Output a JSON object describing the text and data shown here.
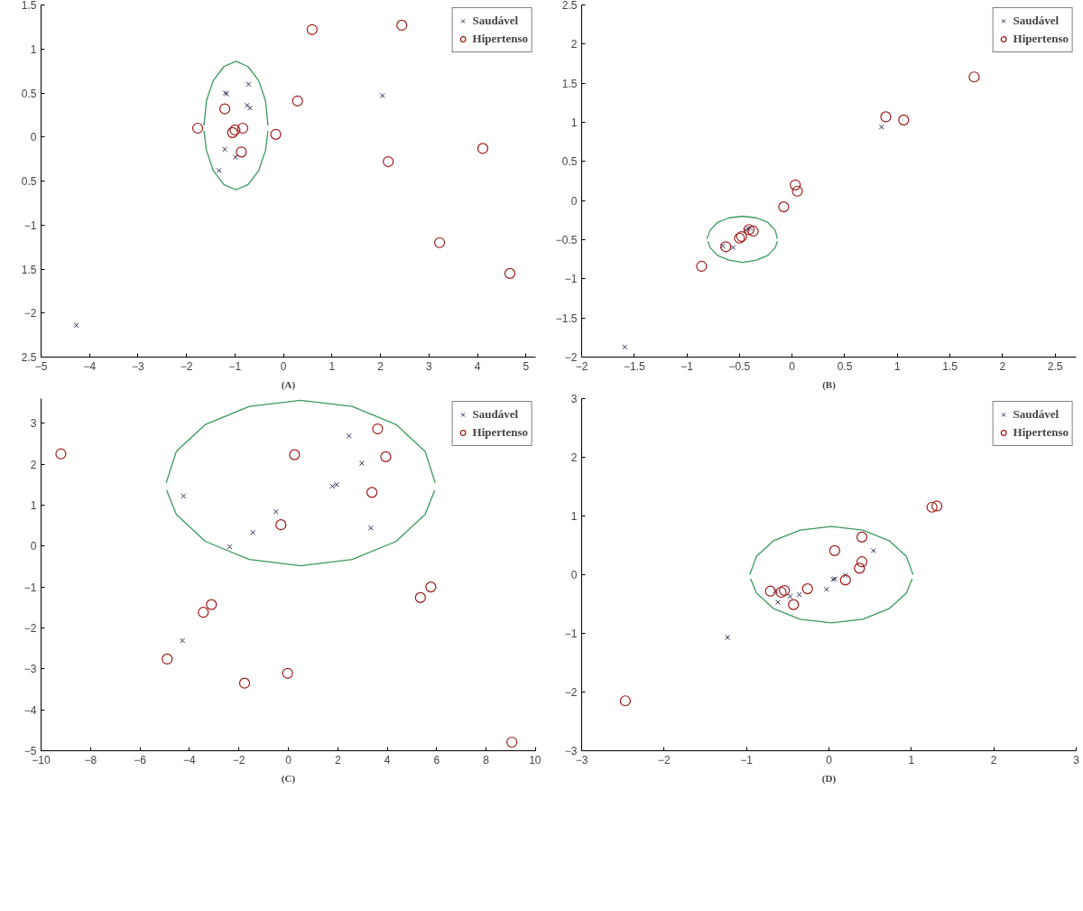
{
  "chart_data": [
    {
      "type": "scatter",
      "title": "(A)",
      "legend": "top right",
      "grid": false,
      "xlim": [
        -5,
        5.2
      ],
      "ylim": [
        -2.5,
        1.5
      ],
      "xticks": [
        -5,
        -4,
        -3,
        -2,
        -1,
        0,
        1,
        2,
        3,
        4,
        5
      ],
      "yticks": [
        1.5,
        1,
        0.5,
        0,
        {
          "value": -0.5,
          "label": "0.5"
        },
        -1,
        {
          "value": -1.5,
          "label": "1.5"
        },
        -2,
        {
          "value": -2.5,
          "label": "2.5"
        }
      ],
      "series": [
        {
          "name": "Saudável",
          "color": "#2b2b55",
          "marker": "cross",
          "x": [
            -4.27,
            -1.2,
            -1.17,
            -0.72,
            -0.75,
            -0.69,
            -1.21,
            -0.99,
            -1.33,
            2.04
          ],
          "values": [
            -2.14,
            0.5,
            0.49,
            0.6,
            0.36,
            0.33,
            -0.14,
            -0.23,
            -0.38,
            0.47
          ]
        },
        {
          "name": "Hipertenso",
          "color": "#a01818",
          "marker": "circle",
          "x": [
            0.59,
            2.44,
            0.29,
            -1.21,
            -1.77,
            -1.05,
            -1.0,
            -0.84,
            -0.16,
            -0.87,
            2.16,
            4.11,
            3.22,
            4.67
          ],
          "values": [
            1.22,
            1.27,
            0.41,
            0.32,
            0.1,
            0.05,
            0.08,
            0.1,
            0.03,
            -0.17,
            -0.28,
            -0.13,
            -1.2,
            -1.55
          ]
        },
        {
          "type": "line",
          "color": "#3a9a5c",
          "marker": "none",
          "line_style": "solid",
          "x": [
            -1.64,
            -1.59,
            -1.45,
            -1.23,
            -0.98,
            -0.73,
            -0.51,
            -0.37,
            -0.32
          ],
          "values": [
            0.13,
            0.41,
            0.64,
            0.8,
            0.86,
            0.8,
            0.64,
            0.41,
            0.13
          ]
        },
        {
          "type": "line",
          "color": "#3a9a5c",
          "marker": "none",
          "line_style": "solid",
          "x": [
            -1.64,
            -1.59,
            -1.45,
            -1.23,
            -0.98,
            -0.73,
            -0.51,
            -0.37,
            -0.32
          ],
          "values": [
            0.07,
            -0.15,
            -0.38,
            -0.54,
            -0.6,
            -0.54,
            -0.38,
            -0.15,
            0.07
          ]
        }
      ]
    },
    {
      "type": "scatter",
      "title": "(B)",
      "legend": "top right",
      "grid": false,
      "xlim": [
        -2,
        2.7
      ],
      "ylim": [
        -2,
        2.5
      ],
      "xticks": [
        -2,
        -1.5,
        -1,
        -0.5,
        0,
        0.5,
        1,
        1.5,
        2,
        2.5
      ],
      "yticks": [
        2.5,
        2,
        1.5,
        1,
        0.5,
        0,
        -0.5,
        -1,
        -1.5,
        -2
      ],
      "series": [
        {
          "name": "Saudável",
          "color": "#2b2b55",
          "marker": "cross",
          "x": [
            -1.59,
            0.85,
            -0.66,
            -0.56,
            -0.44,
            -0.4,
            -0.42
          ],
          "values": [
            -1.87,
            0.94,
            -0.58,
            -0.6,
            -0.38,
            -0.35,
            -0.36
          ]
        },
        {
          "name": "Hipertenso",
          "color": "#a01818",
          "marker": "circle",
          "x": [
            1.73,
            0.89,
            1.06,
            0.03,
            0.05,
            -0.08,
            -0.86,
            -0.63,
            -0.5,
            -0.48,
            -0.37,
            -0.41
          ],
          "values": [
            1.58,
            1.07,
            1.03,
            0.2,
            0.12,
            -0.08,
            -0.84,
            -0.59,
            -0.48,
            -0.46,
            -0.39,
            -0.37
          ]
        },
        {
          "type": "line",
          "color": "#3a9a5c",
          "marker": "none",
          "line_style": "solid",
          "x": [
            -0.81,
            -0.78,
            -0.71,
            -0.6,
            -0.47,
            -0.34,
            -0.23,
            -0.16,
            -0.14
          ],
          "values": [
            -0.49,
            -0.38,
            -0.28,
            -0.22,
            -0.2,
            -0.22,
            -0.28,
            -0.38,
            -0.49
          ]
        },
        {
          "type": "line",
          "color": "#3a9a5c",
          "marker": "none",
          "line_style": "solid",
          "x": [
            -0.8,
            -0.78,
            -0.71,
            -0.6,
            -0.47,
            -0.34,
            -0.23,
            -0.16,
            -0.14
          ],
          "values": [
            -0.52,
            -0.6,
            -0.7,
            -0.76,
            -0.79,
            -0.76,
            -0.7,
            -0.6,
            -0.52
          ]
        }
      ]
    },
    {
      "type": "scatter",
      "title": "(C)",
      "legend": "top right",
      "grid": false,
      "xlim": [
        -10,
        10
      ],
      "ylim": [
        -5,
        3.6
      ],
      "xticks": [
        -10,
        -8,
        -6,
        -4,
        -2,
        0,
        2,
        4,
        6,
        8,
        10
      ],
      "yticks": [
        3,
        2,
        1,
        0,
        -1,
        -2,
        -3,
        -4,
        -5
      ],
      "series": [
        {
          "name": "Saudável",
          "color": "#2b2b55",
          "marker": "cross",
          "x": [
            -4.24,
            -4.28,
            -2.37,
            -1.43,
            -0.5,
            1.79,
            1.95,
            2.45,
            2.97,
            3.33
          ],
          "values": [
            1.22,
            -2.31,
            -0.02,
            0.33,
            0.84,
            1.46,
            1.5,
            2.69,
            2.02,
            0.44
          ]
        },
        {
          "name": "Hipertenso",
          "color": "#a01818",
          "marker": "circle",
          "x": [
            -9.2,
            0.25,
            -0.3,
            3.61,
            3.94,
            3.38,
            -3.11,
            -3.44,
            -4.9,
            -1.77,
            -0.03,
            5.34,
            5.76,
            9.04
          ],
          "values": [
            2.25,
            2.23,
            0.52,
            2.86,
            2.18,
            1.31,
            -1.43,
            -1.62,
            -2.76,
            -3.35,
            -3.11,
            -1.26,
            -1.0,
            -4.79
          ]
        },
        {
          "type": "line",
          "color": "#3a9a5c",
          "marker": "none",
          "line_style": "solid",
          "x": [
            -4.94,
            -4.53,
            -3.35,
            -1.58,
            0.5,
            2.58,
            4.35,
            5.53,
            5.94
          ],
          "values": [
            1.54,
            2.31,
            2.97,
            3.41,
            3.56,
            3.41,
            2.97,
            2.31,
            1.54
          ]
        },
        {
          "type": "line",
          "color": "#3a9a5c",
          "marker": "none",
          "line_style": "solid",
          "x": [
            -4.92,
            -4.53,
            -3.35,
            -1.58,
            0.5,
            2.58,
            4.35,
            5.53,
            5.92
          ],
          "values": [
            1.36,
            0.77,
            0.11,
            -0.33,
            -0.48,
            -0.33,
            0.11,
            0.77,
            1.36
          ]
        }
      ]
    },
    {
      "type": "scatter",
      "title": "(D)",
      "legend": "top right",
      "grid": false,
      "xlim": [
        -3,
        3
      ],
      "ylim": [
        -3,
        3
      ],
      "xticks": [
        -3,
        -2,
        -1,
        0,
        1,
        2,
        3
      ],
      "yticks": [
        3,
        2,
        1,
        0,
        -1,
        -2,
        -3
      ],
      "series": [
        {
          "name": "Saudável",
          "color": "#2b2b55",
          "marker": "cross",
          "x": [
            -1.23,
            -0.65,
            -0.62,
            -0.47,
            -0.36,
            -0.03,
            0.05,
            0.07,
            0.2,
            0.54
          ],
          "values": [
            -1.07,
            -0.28,
            -0.47,
            -0.37,
            -0.34,
            -0.25,
            -0.08,
            -0.07,
            -0.01,
            0.41
          ]
        },
        {
          "name": "Hipertenso",
          "color": "#a01818",
          "marker": "circle",
          "x": [
            -2.47,
            -0.71,
            -0.58,
            -0.54,
            -0.43,
            -0.26,
            0.07,
            0.2,
            0.4,
            0.4,
            0.37,
            1.25,
            1.31
          ],
          "values": [
            -2.15,
            -0.28,
            -0.3,
            -0.27,
            -0.51,
            -0.24,
            0.41,
            -0.09,
            0.64,
            0.22,
            0.11,
            1.15,
            1.17
          ]
        },
        {
          "type": "line",
          "color": "#3a9a5c",
          "marker": "none",
          "line_style": "solid",
          "x": [
            -0.96,
            -0.88,
            -0.67,
            -0.35,
            0.03,
            0.41,
            0.73,
            0.94,
            1.02
          ],
          "values": [
            0,
            0.31,
            0.58,
            0.76,
            0.82,
            0.76,
            0.58,
            0.31,
            0
          ]
        },
        {
          "type": "line",
          "color": "#3a9a5c",
          "marker": "none",
          "line_style": "solid",
          "x": [
            -0.95,
            -0.88,
            -0.67,
            -0.35,
            0.03,
            0.41,
            0.73,
            0.94,
            1.01
          ],
          "values": [
            -0.07,
            -0.31,
            -0.58,
            -0.76,
            -0.82,
            -0.76,
            -0.58,
            -0.31,
            -0.07
          ]
        }
      ]
    }
  ]
}
